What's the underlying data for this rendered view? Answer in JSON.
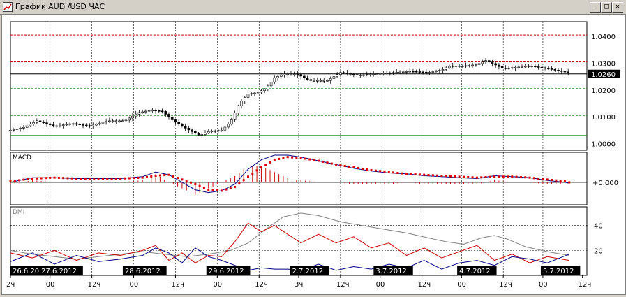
{
  "window": {
    "title": "График AUD /USD  ЧАС",
    "minimize_label": "_",
    "maximize_label": "□",
    "close_label": "×"
  },
  "chart_data": [
    {
      "type": "candlestick",
      "symbol": "AUD/USD",
      "price_labels": [
        "1.0400",
        "1.0300",
        "1.0200",
        "1.0100",
        "1.0000"
      ],
      "price_ticks": [
        1.04,
        1.03,
        1.02,
        1.01,
        1.0
      ],
      "ylim": [
        0.9975,
        1.0455
      ],
      "current_price_label": "1.0260",
      "current_price": 1.026,
      "horizontal_lines": [
        {
          "value": 1.0405,
          "color": "#cc0000",
          "style": "dashed"
        },
        {
          "value": 1.0305,
          "color": "#cc0000",
          "style": "dashed"
        },
        {
          "value": 1.026,
          "color": "#000000",
          "style": "solid"
        },
        {
          "value": 1.0205,
          "color": "#008000",
          "style": "dashed"
        },
        {
          "value": 1.0105,
          "color": "#008000",
          "style": "dashed"
        },
        {
          "value": 1.003,
          "color": "#008000",
          "style": "solid"
        }
      ],
      "close_path": [
        [
          0,
          1.005
        ],
        [
          6,
          1.006
        ],
        [
          12,
          1.0085
        ],
        [
          20,
          1.0065
        ],
        [
          28,
          1.0075
        ],
        [
          36,
          1.0065
        ],
        [
          44,
          1.0085
        ],
        [
          52,
          1.0085
        ],
        [
          58,
          1.0115
        ],
        [
          64,
          1.0125
        ],
        [
          69,
          1.012
        ],
        [
          74,
          1.0085
        ],
        [
          80,
          1.0055
        ],
        [
          86,
          1.003
        ],
        [
          90,
          1.0045
        ],
        [
          96,
          1.005
        ],
        [
          100,
          1.008
        ],
        [
          104,
          1.015
        ],
        [
          108,
          1.0185
        ],
        [
          112,
          1.019
        ],
        [
          116,
          1.0205
        ],
        [
          120,
          1.0245
        ],
        [
          124,
          1.026
        ],
        [
          130,
          1.026
        ],
        [
          136,
          1.0235
        ],
        [
          144,
          1.0235
        ],
        [
          150,
          1.0265
        ],
        [
          158,
          1.0255
        ],
        [
          166,
          1.026
        ],
        [
          174,
          1.0265
        ],
        [
          182,
          1.027
        ],
        [
          190,
          1.0265
        ],
        [
          196,
          1.0275
        ],
        [
          200,
          1.029
        ],
        [
          206,
          1.029
        ],
        [
          212,
          1.0295
        ],
        [
          216,
          1.031
        ],
        [
          220,
          1.0295
        ],
        [
          224,
          1.028
        ],
        [
          230,
          1.0285
        ],
        [
          236,
          1.029
        ],
        [
          244,
          1.028
        ],
        [
          250,
          1.027
        ],
        [
          254,
          1.0265
        ]
      ]
    },
    {
      "type": "line",
      "indicator": "MACD",
      "label": "MACD",
      "level_label": "+0.000",
      "ylim": [
        -1.2,
        1.6
      ],
      "macd_line": [
        [
          0,
          0.0
        ],
        [
          10,
          0.25
        ],
        [
          20,
          0.25
        ],
        [
          30,
          0.2
        ],
        [
          40,
          0.2
        ],
        [
          50,
          0.2
        ],
        [
          60,
          0.3
        ],
        [
          66,
          0.55
        ],
        [
          72,
          0.4
        ],
        [
          78,
          0.0
        ],
        [
          84,
          -0.4
        ],
        [
          90,
          -0.55
        ],
        [
          96,
          -0.45
        ],
        [
          102,
          -0.1
        ],
        [
          108,
          0.7
        ],
        [
          114,
          1.2
        ],
        [
          120,
          1.45
        ],
        [
          126,
          1.45
        ],
        [
          132,
          1.35
        ],
        [
          140,
          1.15
        ],
        [
          148,
          0.95
        ],
        [
          156,
          0.75
        ],
        [
          164,
          0.6
        ],
        [
          172,
          0.5
        ],
        [
          180,
          0.45
        ],
        [
          188,
          0.35
        ],
        [
          196,
          0.3
        ],
        [
          204,
          0.25
        ],
        [
          212,
          0.2
        ],
        [
          220,
          0.35
        ],
        [
          228,
          0.3
        ],
        [
          236,
          0.25
        ],
        [
          244,
          0.1
        ],
        [
          252,
          0.0
        ],
        [
          254,
          -0.05
        ]
      ],
      "signal_line": [
        [
          0,
          0.05
        ],
        [
          10,
          0.2
        ],
        [
          20,
          0.25
        ],
        [
          30,
          0.2
        ],
        [
          40,
          0.2
        ],
        [
          50,
          0.2
        ],
        [
          60,
          0.25
        ],
        [
          66,
          0.35
        ],
        [
          72,
          0.4
        ],
        [
          78,
          0.15
        ],
        [
          84,
          -0.1
        ],
        [
          90,
          -0.4
        ],
        [
          96,
          -0.45
        ],
        [
          102,
          -0.25
        ],
        [
          108,
          0.3
        ],
        [
          114,
          0.8
        ],
        [
          120,
          1.2
        ],
        [
          126,
          1.35
        ],
        [
          132,
          1.3
        ],
        [
          140,
          1.15
        ],
        [
          148,
          0.95
        ],
        [
          156,
          0.8
        ],
        [
          164,
          0.65
        ],
        [
          172,
          0.55
        ],
        [
          180,
          0.45
        ],
        [
          188,
          0.4
        ],
        [
          196,
          0.35
        ],
        [
          204,
          0.3
        ],
        [
          212,
          0.25
        ],
        [
          220,
          0.3
        ],
        [
          228,
          0.3
        ],
        [
          236,
          0.25
        ],
        [
          244,
          0.15
        ],
        [
          252,
          0.05
        ],
        [
          254,
          0.0
        ]
      ]
    },
    {
      "type": "line",
      "indicator": "DMI",
      "label": "DMI",
      "level_labels": [
        "40",
        "20"
      ],
      "levels": [
        40,
        20
      ],
      "ylim": [
        0,
        55
      ],
      "adx": [
        [
          0,
          20
        ],
        [
          10,
          17
        ],
        [
          20,
          15
        ],
        [
          30,
          13
        ],
        [
          40,
          15
        ],
        [
          50,
          17
        ],
        [
          60,
          19
        ],
        [
          70,
          17
        ],
        [
          80,
          15
        ],
        [
          90,
          17
        ],
        [
          100,
          20
        ],
        [
          108,
          26
        ],
        [
          116,
          37
        ],
        [
          124,
          47
        ],
        [
          132,
          50
        ],
        [
          140,
          48
        ],
        [
          150,
          43
        ],
        [
          160,
          40
        ],
        [
          170,
          37
        ],
        [
          180,
          34
        ],
        [
          190,
          30
        ],
        [
          198,
          27
        ],
        [
          206,
          25
        ],
        [
          214,
          30
        ],
        [
          220,
          32
        ],
        [
          226,
          29
        ],
        [
          234,
          23
        ],
        [
          244,
          19
        ],
        [
          254,
          16
        ]
      ],
      "plus_di": [
        [
          0,
          18
        ],
        [
          10,
          14
        ],
        [
          20,
          20
        ],
        [
          30,
          12
        ],
        [
          40,
          18
        ],
        [
          50,
          16
        ],
        [
          60,
          20
        ],
        [
          66,
          24
        ],
        [
          72,
          12
        ],
        [
          78,
          18
        ],
        [
          84,
          10
        ],
        [
          90,
          16
        ],
        [
          96,
          15
        ],
        [
          102,
          27
        ],
        [
          108,
          42
        ],
        [
          114,
          35
        ],
        [
          120,
          40
        ],
        [
          126,
          33
        ],
        [
          132,
          26
        ],
        [
          140,
          33
        ],
        [
          148,
          26
        ],
        [
          156,
          31
        ],
        [
          164,
          22
        ],
        [
          172,
          26
        ],
        [
          180,
          16
        ],
        [
          188,
          22
        ],
        [
          196,
          14
        ],
        [
          204,
          19
        ],
        [
          212,
          24
        ],
        [
          220,
          12
        ],
        [
          228,
          17
        ],
        [
          236,
          10
        ],
        [
          244,
          15
        ],
        [
          254,
          12
        ]
      ],
      "minus_di": [
        [
          0,
          11
        ],
        [
          10,
          18
        ],
        [
          20,
          9
        ],
        [
          30,
          16
        ],
        [
          40,
          11
        ],
        [
          50,
          13
        ],
        [
          60,
          16
        ],
        [
          66,
          22
        ],
        [
          72,
          18
        ],
        [
          78,
          10
        ],
        [
          84,
          22
        ],
        [
          90,
          15
        ],
        [
          96,
          12
        ],
        [
          102,
          8
        ],
        [
          108,
          4
        ],
        [
          114,
          6
        ],
        [
          120,
          5
        ],
        [
          126,
          5
        ],
        [
          132,
          4
        ],
        [
          140,
          9
        ],
        [
          148,
          4
        ],
        [
          156,
          7
        ],
        [
          164,
          5
        ],
        [
          172,
          9
        ],
        [
          180,
          6
        ],
        [
          188,
          12
        ],
        [
          196,
          5
        ],
        [
          204,
          10
        ],
        [
          212,
          12
        ],
        [
          220,
          8
        ],
        [
          228,
          15
        ],
        [
          236,
          13
        ],
        [
          244,
          10
        ],
        [
          254,
          17
        ]
      ]
    }
  ],
  "time_axis": {
    "date_labels": [
      {
        "text": "26.6.20",
        "pos": 0
      },
      {
        "text": "27.6.2012",
        "pos": 14
      },
      {
        "text": "28.6.2012",
        "pos": 52
      },
      {
        "text": "29.6.2012",
        "pos": 90
      },
      {
        "text": "2.7.2012",
        "pos": 128
      },
      {
        "text": "3.7.2012",
        "pos": 166
      },
      {
        "text": "4.7.2012",
        "pos": 204
      },
      {
        "text": "5.7.2012",
        "pos": 242
      }
    ],
    "hour_labels": [
      {
        "text": "2ч",
        "pos": 0
      },
      {
        "text": "00",
        "pos": 18
      },
      {
        "text": "12ч",
        "pos": 37
      },
      {
        "text": "00",
        "pos": 56
      },
      {
        "text": "12ч",
        "pos": 75
      },
      {
        "text": "00",
        "pos": 94
      },
      {
        "text": "12ч",
        "pos": 113
      },
      {
        "text": "3ч",
        "pos": 131
      },
      {
        "text": "12ч",
        "pos": 150
      },
      {
        "text": "00",
        "pos": 168
      },
      {
        "text": "12ч",
        "pos": 187
      },
      {
        "text": "00",
        "pos": 205
      },
      {
        "text": "12ч",
        "pos": 224
      },
      {
        "text": "00",
        "pos": 242
      },
      {
        "text": "12ч",
        "pos": 260
      }
    ],
    "vertical_grid_positions": [
      18,
      37,
      56,
      75,
      94,
      113,
      131,
      150,
      168,
      187,
      205,
      224,
      242
    ],
    "xlim": [
      0,
      262
    ]
  }
}
